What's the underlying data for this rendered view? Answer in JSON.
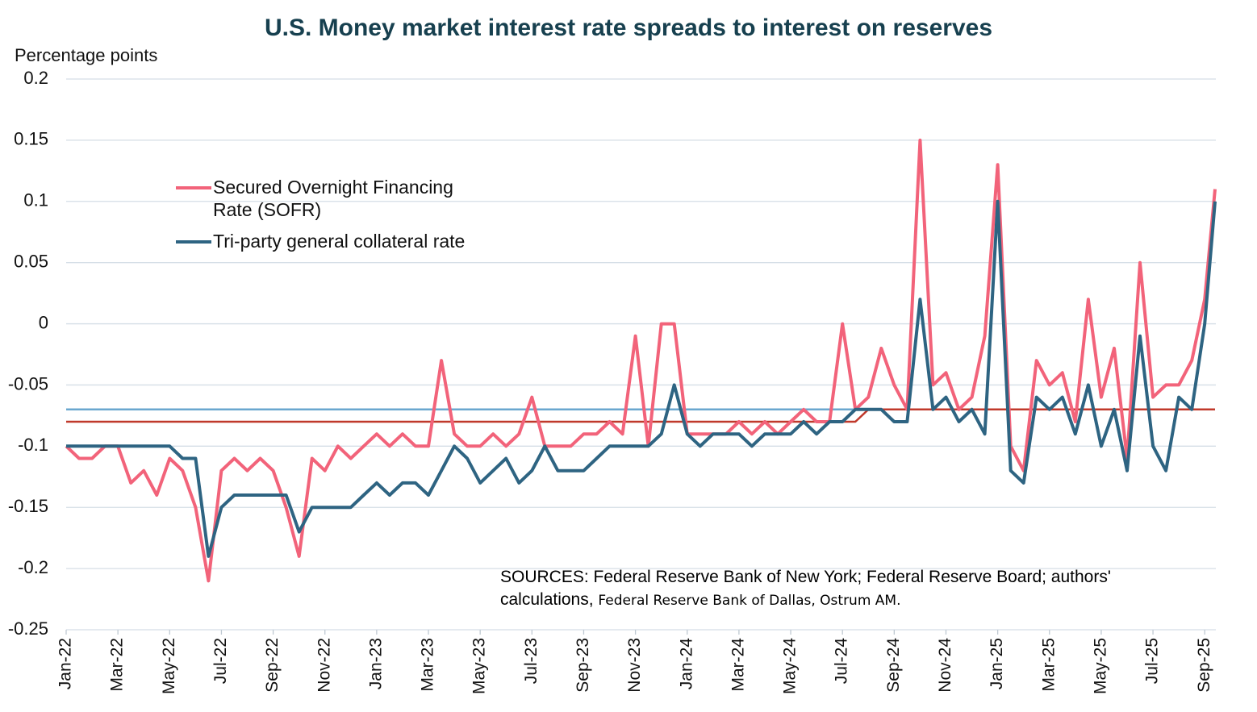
{
  "chart_data": {
    "type": "line",
    "title": "U.S. Money market interest rate spreads to interest on reserves",
    "y_label": "Percentage points",
    "source": "SOURCES: Federal Reserve Bank of New York; Federal Reserve Board; authors' calculations,",
    "source_2": "Federal Reserve Bank of Dallas, Ostrum AM.",
    "x": [
      0,
      0.5,
      1,
      1.5,
      2,
      2.5,
      3,
      3.5,
      4,
      4.5,
      5,
      5.5,
      6,
      6.5,
      7,
      7.5,
      8,
      8.5,
      9,
      9.5,
      10,
      10.5,
      11,
      11.5,
      12,
      12.5,
      13,
      13.5,
      14,
      14.5,
      15,
      15.5,
      16,
      16.5,
      17,
      17.5,
      18,
      18.5,
      19,
      19.5,
      20,
      20.5,
      21,
      21.5,
      22,
      22.5,
      23,
      23.5,
      24,
      24.5,
      25,
      25.5,
      26,
      26.5,
      27,
      27.5,
      28,
      28.5,
      29,
      29.5,
      30,
      30.5,
      31,
      31.5,
      32,
      32.5,
      33,
      33.5,
      34,
      34.5,
      35,
      35.5,
      36,
      36.5,
      37,
      37.5,
      38,
      38.5,
      39,
      39.5,
      40,
      40.5,
      41,
      41.5,
      42,
      42.5,
      43,
      43.5,
      44,
      44.4
    ],
    "xlim": [
      0,
      44.43
    ],
    "xticks": [
      {
        "value": 0,
        "label": "Jan-22"
      },
      {
        "value": 2,
        "label": "Mar-22"
      },
      {
        "value": 4,
        "label": "May-22"
      },
      {
        "value": 6,
        "label": "Jul-22"
      },
      {
        "value": 8,
        "label": "Sep-22"
      },
      {
        "value": 10,
        "label": "Nov-22"
      },
      {
        "value": 12,
        "label": "Jan-23"
      },
      {
        "value": 14,
        "label": "Mar-23"
      },
      {
        "value": 16,
        "label": "May-23"
      },
      {
        "value": 18,
        "label": "Jul-23"
      },
      {
        "value": 20,
        "label": "Sep-23"
      },
      {
        "value": 22,
        "label": "Nov-23"
      },
      {
        "value": 24,
        "label": "Jan-24"
      },
      {
        "value": 26,
        "label": "Mar-24"
      },
      {
        "value": 28,
        "label": "May-24"
      },
      {
        "value": 30,
        "label": "Jul-24"
      },
      {
        "value": 32,
        "label": "Sep-24"
      },
      {
        "value": 34,
        "label": "Nov-24"
      },
      {
        "value": 36,
        "label": "Jan-25"
      },
      {
        "value": 38,
        "label": "Mar-25"
      },
      {
        "value": 40,
        "label": "May-25"
      },
      {
        "value": 42,
        "label": "Jul-25"
      },
      {
        "value": 44,
        "label": "Sep-25"
      }
    ],
    "ylim": [
      -0.25,
      0.2
    ],
    "yticks": [
      -0.25,
      -0.2,
      -0.15,
      -0.1,
      -0.05,
      0,
      0.05,
      0.1,
      0.15,
      0.2
    ],
    "grid": true,
    "series": [
      {
        "color": "#6aa7cf",
        "values": [
          -0.07,
          -0.07,
          -0.07,
          -0.07,
          -0.07,
          -0.07,
          -0.07,
          -0.07,
          -0.07,
          -0.07,
          -0.07,
          -0.07,
          -0.07,
          -0.07,
          -0.07,
          -0.07,
          -0.07,
          -0.07,
          -0.07,
          -0.07,
          -0.07,
          -0.07,
          -0.07,
          -0.07,
          -0.07,
          -0.07,
          -0.07,
          -0.07,
          -0.07,
          -0.07,
          -0.07,
          -0.07,
          -0.07,
          -0.07,
          -0.07,
          -0.07,
          -0.07,
          -0.07,
          -0.07,
          -0.07,
          -0.07,
          -0.07,
          -0.07,
          -0.07,
          -0.07,
          -0.07,
          -0.07,
          -0.07,
          -0.07,
          -0.07,
          -0.07,
          -0.07,
          -0.07,
          -0.07,
          -0.07,
          -0.07,
          -0.07,
          -0.07,
          -0.07,
          -0.07,
          -0.07,
          -0.07,
          -0.07,
          -0.07,
          -0.07,
          -0.07,
          -0.07,
          -0.07,
          -0.07,
          -0.07,
          -0.07,
          -0.07,
          -0.07,
          -0.07,
          -0.07,
          -0.07,
          -0.07,
          -0.07,
          -0.07,
          -0.07,
          -0.07,
          -0.07,
          -0.07,
          -0.07,
          -0.07,
          -0.07,
          -0.07,
          -0.07,
          -0.07,
          -0.07
        ]
      },
      {
        "color": "#c0392b",
        "values": [
          -0.08,
          -0.08,
          -0.08,
          -0.08,
          -0.08,
          -0.08,
          -0.08,
          -0.08,
          -0.08,
          -0.08,
          -0.08,
          -0.08,
          -0.08,
          -0.08,
          -0.08,
          -0.08,
          -0.08,
          -0.08,
          -0.08,
          -0.08,
          -0.08,
          -0.08,
          -0.08,
          -0.08,
          -0.08,
          -0.08,
          -0.08,
          -0.08,
          -0.08,
          -0.08,
          -0.08,
          -0.08,
          -0.08,
          -0.08,
          -0.08,
          -0.08,
          -0.08,
          -0.08,
          -0.08,
          -0.08,
          -0.08,
          -0.08,
          -0.08,
          -0.08,
          -0.08,
          -0.08,
          -0.08,
          -0.08,
          -0.08,
          -0.08,
          -0.08,
          -0.08,
          -0.08,
          -0.08,
          -0.08,
          -0.08,
          -0.08,
          -0.08,
          -0.08,
          -0.08,
          -0.08,
          -0.08,
          -0.07,
          -0.07,
          -0.07,
          -0.07,
          -0.07,
          -0.07,
          -0.07,
          -0.07,
          -0.07,
          -0.07,
          -0.07,
          -0.07,
          -0.07,
          -0.07,
          -0.07,
          -0.07,
          -0.07,
          -0.07,
          -0.07,
          -0.07,
          -0.07,
          -0.07,
          -0.07,
          -0.07,
          -0.07,
          -0.07,
          -0.07,
          -0.07
        ]
      },
      {
        "name": "Secured Overnight Financing Rate (SOFR)",
        "color": "#f2637a",
        "values": [
          -0.1,
          -0.11,
          -0.11,
          -0.1,
          -0.1,
          -0.13,
          -0.12,
          -0.14,
          -0.11,
          -0.12,
          -0.15,
          -0.21,
          -0.12,
          -0.11,
          -0.12,
          -0.11,
          -0.12,
          -0.15,
          -0.19,
          -0.11,
          -0.12,
          -0.1,
          -0.11,
          -0.1,
          -0.09,
          -0.1,
          -0.09,
          -0.1,
          -0.1,
          -0.03,
          -0.09,
          -0.1,
          -0.1,
          -0.09,
          -0.1,
          -0.09,
          -0.06,
          -0.1,
          -0.1,
          -0.1,
          -0.09,
          -0.09,
          -0.08,
          -0.09,
          -0.01,
          -0.1,
          0,
          0,
          -0.09,
          -0.09,
          -0.09,
          -0.09,
          -0.08,
          -0.09,
          -0.08,
          -0.09,
          -0.08,
          -0.07,
          -0.08,
          -0.08,
          0,
          -0.07,
          -0.06,
          -0.02,
          -0.05,
          -0.07,
          0.15,
          -0.05,
          -0.04,
          -0.07,
          -0.06,
          -0.01,
          0.13,
          -0.1,
          -0.12,
          -0.03,
          -0.05,
          -0.04,
          -0.08,
          0.02,
          -0.06,
          -0.02,
          -0.11,
          0.05,
          -0.06,
          -0.05,
          -0.05,
          -0.03,
          0.02,
          0.11
        ]
      },
      {
        "name": "Tri-party general collateral rate",
        "color": "#2e6482",
        "values": [
          -0.1,
          -0.1,
          -0.1,
          -0.1,
          -0.1,
          -0.1,
          -0.1,
          -0.1,
          -0.1,
          -0.11,
          -0.11,
          -0.19,
          -0.15,
          -0.14,
          -0.14,
          -0.14,
          -0.14,
          -0.14,
          -0.17,
          -0.15,
          -0.15,
          -0.15,
          -0.15,
          -0.14,
          -0.13,
          -0.14,
          -0.13,
          -0.13,
          -0.14,
          -0.12,
          -0.1,
          -0.11,
          -0.13,
          -0.12,
          -0.11,
          -0.13,
          -0.12,
          -0.1,
          -0.12,
          -0.12,
          -0.12,
          -0.11,
          -0.1,
          -0.1,
          -0.1,
          -0.1,
          -0.09,
          -0.05,
          -0.09,
          -0.1,
          -0.09,
          -0.09,
          -0.09,
          -0.1,
          -0.09,
          -0.09,
          -0.09,
          -0.08,
          -0.09,
          -0.08,
          -0.08,
          -0.07,
          -0.07,
          -0.07,
          -0.08,
          -0.08,
          0.02,
          -0.07,
          -0.06,
          -0.08,
          -0.07,
          -0.09,
          0.1,
          -0.12,
          -0.13,
          -0.06,
          -0.07,
          -0.06,
          -0.09,
          -0.05,
          -0.1,
          -0.07,
          -0.12,
          -0.01,
          -0.1,
          -0.12,
          -0.06,
          -0.07,
          0,
          0.1
        ]
      }
    ]
  }
}
